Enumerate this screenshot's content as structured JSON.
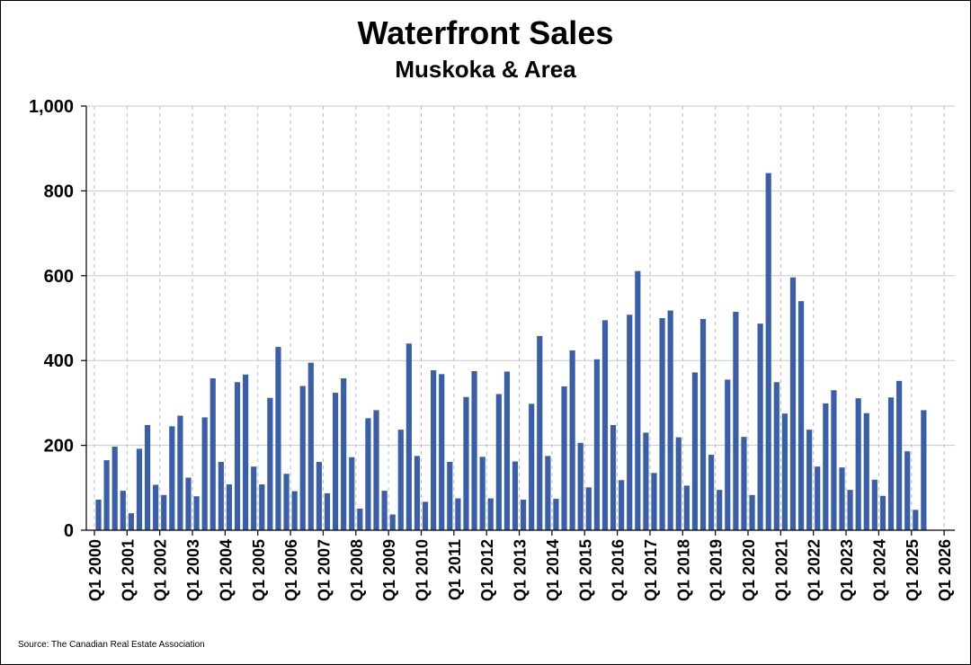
{
  "chart_data": {
    "type": "bar",
    "title": "Waterfront Sales",
    "subtitle": "Muskoka & Area",
    "source": "Source: The Canadian Real Estate Association",
    "ylim": [
      0,
      1000
    ],
    "y_ticks": [
      0,
      200,
      400,
      600,
      800,
      1000
    ],
    "y_tick_labels": [
      "0",
      "200",
      "400",
      "600",
      "800",
      "1,000"
    ],
    "x_tick_labels": [
      "Q1 2000",
      "Q1 2001",
      "Q1 2002",
      "Q1 2003",
      "Q1 2004",
      "Q1 2005",
      "Q1 2006",
      "Q1 2007",
      "Q1 2008",
      "Q1 2009",
      "Q1 2010",
      "Q1 2011",
      "Q1 2012",
      "Q1 2013",
      "Q1 2014",
      "Q1 2015",
      "Q1 2016",
      "Q1 2017",
      "Q1 2018",
      "Q1 2019",
      "Q1 2020",
      "Q1 2021",
      "Q1 2022",
      "Q1 2023",
      "Q1 2024",
      "Q1 2025",
      "Q1 2026"
    ],
    "grid": true,
    "bar_color": "#3a5fa8",
    "categories": [
      "Q1 2000",
      "Q2 2000",
      "Q3 2000",
      "Q4 2000",
      "Q1 2001",
      "Q2 2001",
      "Q3 2001",
      "Q4 2001",
      "Q1 2002",
      "Q2 2002",
      "Q3 2002",
      "Q4 2002",
      "Q1 2003",
      "Q2 2003",
      "Q3 2003",
      "Q4 2003",
      "Q1 2004",
      "Q2 2004",
      "Q3 2004",
      "Q4 2004",
      "Q1 2005",
      "Q2 2005",
      "Q3 2005",
      "Q4 2005",
      "Q1 2006",
      "Q2 2006",
      "Q3 2006",
      "Q4 2006",
      "Q1 2007",
      "Q2 2007",
      "Q3 2007",
      "Q4 2007",
      "Q1 2008",
      "Q2 2008",
      "Q3 2008",
      "Q4 2008",
      "Q1 2009",
      "Q2 2009",
      "Q3 2009",
      "Q4 2009",
      "Q1 2010",
      "Q2 2010",
      "Q3 2010",
      "Q4 2010",
      "Q1 2011",
      "Q2 2011",
      "Q3 2011",
      "Q4 2011",
      "Q1 2012",
      "Q2 2012",
      "Q3 2012",
      "Q4 2012",
      "Q1 2013",
      "Q2 2013",
      "Q3 2013",
      "Q4 2013",
      "Q1 2014",
      "Q2 2014",
      "Q3 2014",
      "Q4 2014",
      "Q1 2015",
      "Q2 2015",
      "Q3 2015",
      "Q4 2015",
      "Q1 2016",
      "Q2 2016",
      "Q3 2016",
      "Q4 2016",
      "Q1 2017",
      "Q2 2017",
      "Q3 2017",
      "Q4 2017",
      "Q1 2018",
      "Q2 2018",
      "Q3 2018",
      "Q4 2018",
      "Q1 2019",
      "Q2 2019",
      "Q3 2019",
      "Q4 2019",
      "Q1 2020",
      "Q2 2020",
      "Q3 2020",
      "Q4 2020",
      "Q1 2021",
      "Q2 2021",
      "Q3 2021",
      "Q4 2021",
      "Q1 2022",
      "Q2 2022",
      "Q3 2022",
      "Q4 2022",
      "Q1 2023",
      "Q2 2023",
      "Q3 2023",
      "Q4 2023",
      "Q1 2024",
      "Q2 2024",
      "Q3 2024",
      "Q4 2024",
      "Q1 2025",
      "Q2 2025"
    ],
    "values": [
      72,
      165,
      197,
      93,
      40,
      192,
      248,
      107,
      83,
      245,
      270,
      124,
      80,
      266,
      358,
      161,
      108,
      349,
      367,
      150,
      108,
      312,
      432,
      133,
      92,
      340,
      395,
      161,
      87,
      324,
      358,
      172,
      51,
      264,
      283,
      93,
      37,
      237,
      440,
      175,
      67,
      377,
      368,
      161,
      75,
      314,
      375,
      173,
      75,
      321,
      374,
      162,
      72,
      298,
      458,
      175,
      74,
      339,
      424,
      206,
      101,
      403,
      495,
      248,
      118,
      508,
      611,
      230,
      135,
      500,
      518,
      219,
      105,
      372,
      498,
      178,
      95,
      355,
      515,
      220,
      83,
      487,
      842,
      349,
      275,
      596,
      540,
      237,
      150,
      299,
      330,
      148,
      95,
      311,
      276,
      119,
      81,
      313,
      352,
      186,
      48,
      283
    ]
  }
}
